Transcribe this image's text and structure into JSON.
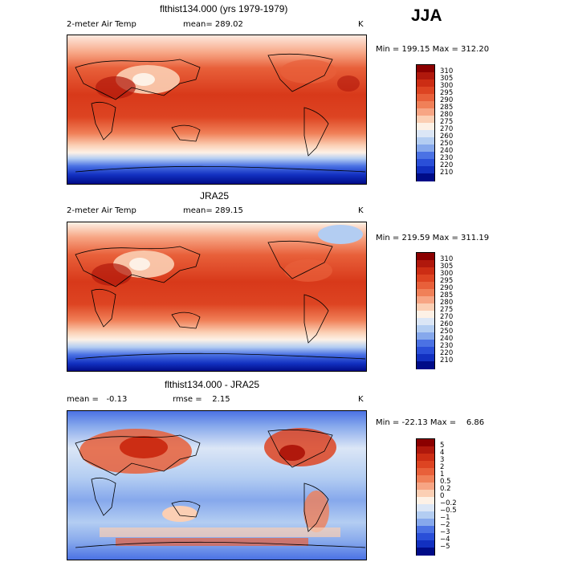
{
  "season": "JJA",
  "panels": [
    {
      "title": "flthist134.000 (yrs 1979-1979)",
      "left_label": "2-meter Air Temp",
      "center_label": "mean= 289.02",
      "right_label": "K",
      "minmax": "Min = 199.15 Max = 312.20",
      "colorbar_labels": [
        "310",
        "305",
        "300",
        "295",
        "290",
        "285",
        "280",
        "275",
        "270",
        "260",
        "250",
        "240",
        "230",
        "220",
        "210"
      ],
      "colorbar_colors": [
        "#8b0000",
        "#b0180c",
        "#cc2d14",
        "#dd4422",
        "#e8603a",
        "#f08058",
        "#f7a584",
        "#fbcfb4",
        "#fdf1e6",
        "#dbe6f6",
        "#b3cdf2",
        "#86a8ec",
        "#4b72e4",
        "#2a4fd8",
        "#1230c0",
        "#000c88"
      ],
      "mean_value": 289.02,
      "min_value": 199.15,
      "max_value": 312.2,
      "units": "K"
    },
    {
      "title": "JRA25",
      "left_label": "2-meter Air Temp",
      "center_label": "mean= 289.15",
      "right_label": "K",
      "minmax": "Min = 219.59 Max = 311.19",
      "colorbar_labels": [
        "310",
        "305",
        "300",
        "295",
        "290",
        "285",
        "280",
        "275",
        "270",
        "260",
        "250",
        "240",
        "230",
        "220",
        "210"
      ],
      "colorbar_colors": [
        "#8b0000",
        "#b0180c",
        "#cc2d14",
        "#dd4422",
        "#e8603a",
        "#f08058",
        "#f7a584",
        "#fbcfb4",
        "#fdf1e6",
        "#dbe6f6",
        "#b3cdf2",
        "#86a8ec",
        "#4b72e4",
        "#2a4fd8",
        "#1230c0",
        "#000c88"
      ],
      "mean_value": 289.15,
      "min_value": 219.59,
      "max_value": 311.19,
      "units": "K"
    },
    {
      "title": "flthist134.000 - JRA25",
      "left_label": "mean =   -0.13",
      "center_label": "rmse =    2.15",
      "right_label": "K",
      "minmax": "Min = -22.13 Max =    6.86",
      "colorbar_labels": [
        "5",
        "4",
        "3",
        "2",
        "1",
        "0.5",
        "0.2",
        "0",
        "−0.2",
        "−0.5",
        "−1",
        "−2",
        "−3",
        "−4",
        "−5"
      ],
      "colorbar_colors": [
        "#8b0000",
        "#b0180c",
        "#cc2d14",
        "#dd4422",
        "#e8603a",
        "#f08058",
        "#f7a584",
        "#fbcfb4",
        "#fdf1e6",
        "#dbe6f6",
        "#b3cdf2",
        "#86a8ec",
        "#4b72e4",
        "#2a4fd8",
        "#1230c0",
        "#000c88"
      ],
      "mean_value": -0.13,
      "rmse_value": 2.15,
      "min_value": -22.13,
      "max_value": 6.86,
      "units": "K"
    }
  ]
}
